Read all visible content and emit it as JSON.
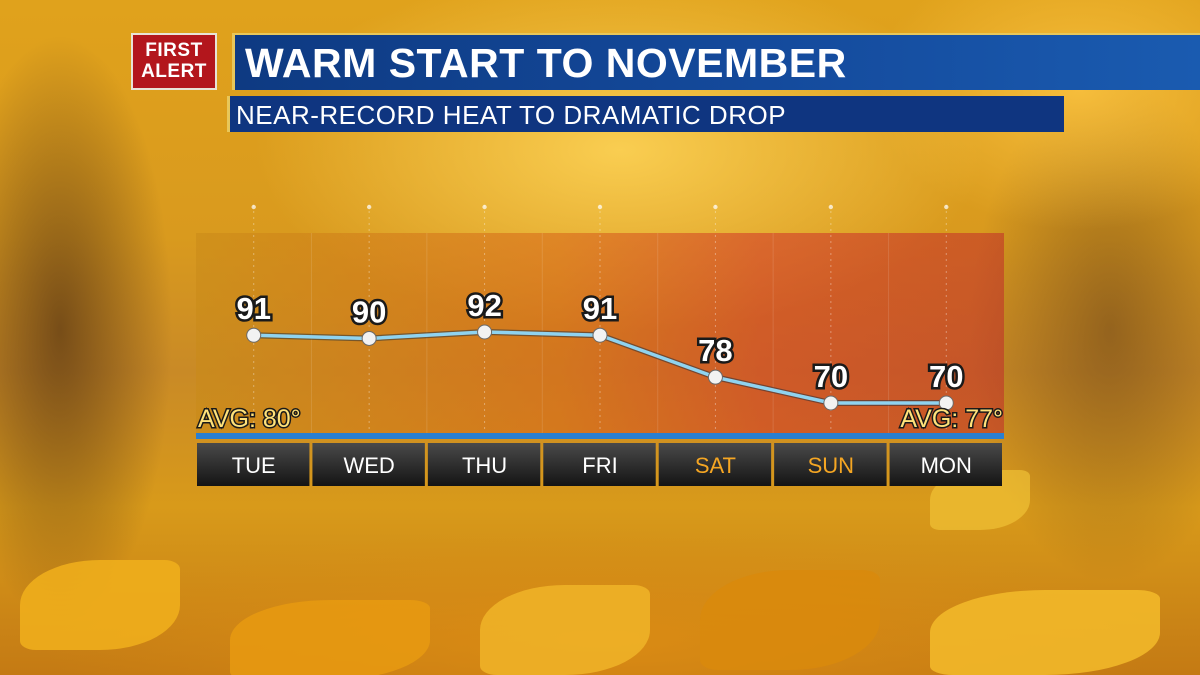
{
  "header": {
    "badge_line1": "FIRST",
    "badge_line2": "ALERT",
    "title": "WARM START TO NOVEMBER",
    "subtitle": "NEAR-RECORD HEAT TO DRAMATIC DROP"
  },
  "colors": {
    "line": "#8fd3f0",
    "weekday_label": "#ffffff",
    "weekend_label": "#f5a623",
    "avg_label": "#ffe27a",
    "title_bar": "#144a9c",
    "badge": "#b3161c"
  },
  "chart_data": {
    "type": "line",
    "title": "",
    "xlabel": "",
    "ylabel": "",
    "categories": [
      "TUE",
      "WED",
      "THU",
      "FRI",
      "SAT",
      "SUN",
      "MON"
    ],
    "weekend": [
      false,
      false,
      false,
      false,
      true,
      true,
      false
    ],
    "series": [
      {
        "values": [
          91,
          90,
          92,
          91,
          78,
          70,
          70
        ]
      }
    ],
    "value_labels": [
      "91",
      "90",
      "92",
      "91",
      "78",
      "70",
      "70"
    ],
    "annotations": [
      {
        "text": "AVG: 80°",
        "anchor": "left"
      },
      {
        "text": "AVG: 77°",
        "anchor": "right"
      }
    ],
    "grid": true,
    "legend": "none"
  }
}
